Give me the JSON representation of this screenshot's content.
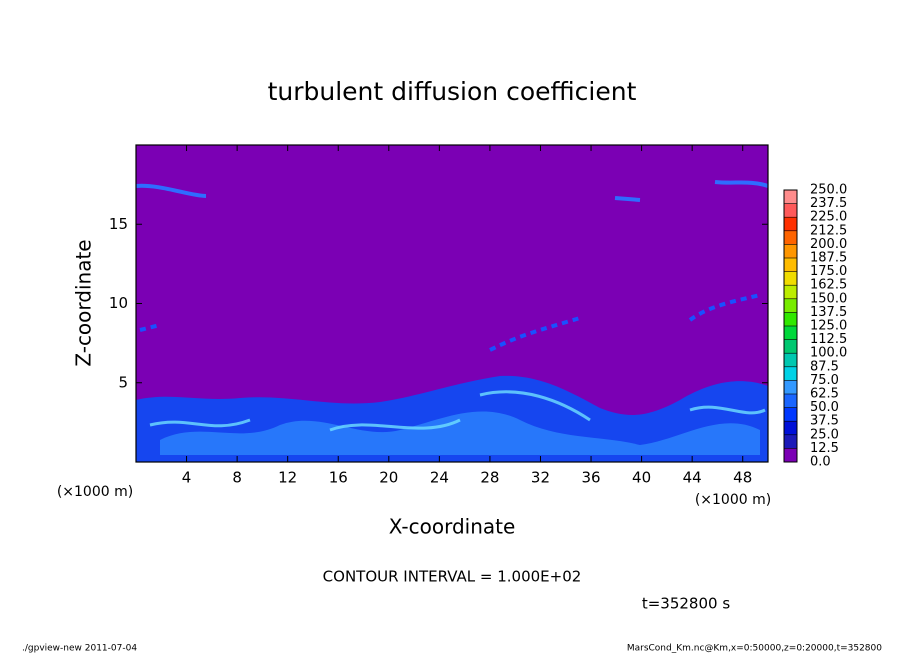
{
  "chart_data": {
    "type": "contour",
    "title": "turbulent diffusion coefficient",
    "x_label": "X-coordinate",
    "y_label": "Z-coordinate",
    "x_unit": "(×1000 m)",
    "y_unit": "(×1000 m)",
    "xlim": [
      0,
      50
    ],
    "xticks": [
      4,
      8,
      12,
      16,
      20,
      24,
      28,
      32,
      36,
      40,
      44,
      48
    ],
    "ylim": [
      0,
      20
    ],
    "yticks": [
      5,
      10,
      15
    ],
    "colorbar": {
      "ticks": [
        {
          "value": 0,
          "label": "0.0"
        },
        12.5,
        {
          "value": 25,
          "label": "25.0"
        },
        37.5,
        {
          "value": 50,
          "label": "50.0"
        },
        62.5,
        {
          "value": 75,
          "label": "75.0"
        },
        87.5,
        {
          "value": 100,
          "label": "100.0"
        },
        112.5,
        {
          "value": 125,
          "label": "125.0"
        },
        137.5,
        {
          "value": 150,
          "label": "150.0"
        },
        162.5,
        {
          "value": 175,
          "label": "175.0"
        },
        187.5,
        {
          "value": 200,
          "label": "200.0"
        },
        212.5,
        {
          "value": 225,
          "label": "225.0"
        },
        237.5,
        {
          "value": 250,
          "label": "250.0"
        }
      ],
      "colors": [
        "#7b00b4",
        "#1c1ab8",
        "#0010d8",
        "#0038ff",
        "#1a66ff",
        "#3399ff",
        "#00d2e6",
        "#00c8b0",
        "#00c870",
        "#00d83a",
        "#30e800",
        "#78ec00",
        "#bcec00",
        "#f0dc00",
        "#ffbc00",
        "#ff9600",
        "#ff6400",
        "#ff3000",
        "#ff5a5a",
        "#ff8c8c"
      ]
    },
    "annotations": [
      "CONTOUR INTERVAL = 1.000E+02",
      "t=352800 s"
    ],
    "footer_left": "./gpview-new  2011-07-04",
    "footer_right": "MarsCond_Km.nc@Km,x=0:50000,z=0:20000,t=352800"
  }
}
